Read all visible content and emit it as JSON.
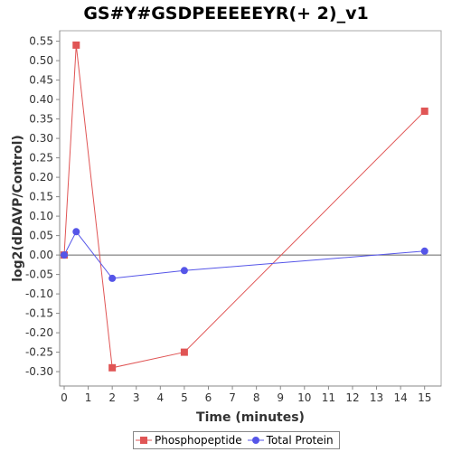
{
  "chart_data": {
    "type": "line",
    "title": "GS#Y#GSDPEEEEEYR(+ 2)_v1",
    "xlabel": "Time (minutes)",
    "ylabel": "log2(dDAVP/Control)",
    "xlim": [
      0,
      15.5
    ],
    "ylim": [
      -0.33,
      0.57
    ],
    "xticks": [
      0,
      1,
      2,
      3,
      4,
      5,
      6,
      7,
      8,
      9,
      10,
      11,
      12,
      13,
      14,
      15
    ],
    "yticks": [
      -0.3,
      -0.25,
      -0.2,
      -0.15,
      -0.1,
      -0.05,
      0.0,
      0.05,
      0.1,
      0.15,
      0.2,
      0.25,
      0.3,
      0.35,
      0.4,
      0.45,
      0.5,
      0.55
    ],
    "grid": false,
    "zero_line": true,
    "legend_position": "bottom",
    "series": [
      {
        "name": "Phosphopeptide",
        "color": "#e05555",
        "marker": "square",
        "points": [
          {
            "x": 0,
            "y": 0.0
          },
          {
            "x": 0.5,
            "y": 0.54
          },
          {
            "x": 2,
            "y": -0.29
          },
          {
            "x": 5,
            "y": -0.25
          },
          {
            "x": 15,
            "y": 0.37
          }
        ]
      },
      {
        "name": "Total Protein",
        "color": "#5555e8",
        "marker": "circle",
        "points": [
          {
            "x": 0,
            "y": 0.0
          },
          {
            "x": 0.5,
            "y": 0.06
          },
          {
            "x": 2,
            "y": -0.06
          },
          {
            "x": 5,
            "y": -0.04
          },
          {
            "x": 15,
            "y": 0.01
          }
        ]
      }
    ]
  }
}
